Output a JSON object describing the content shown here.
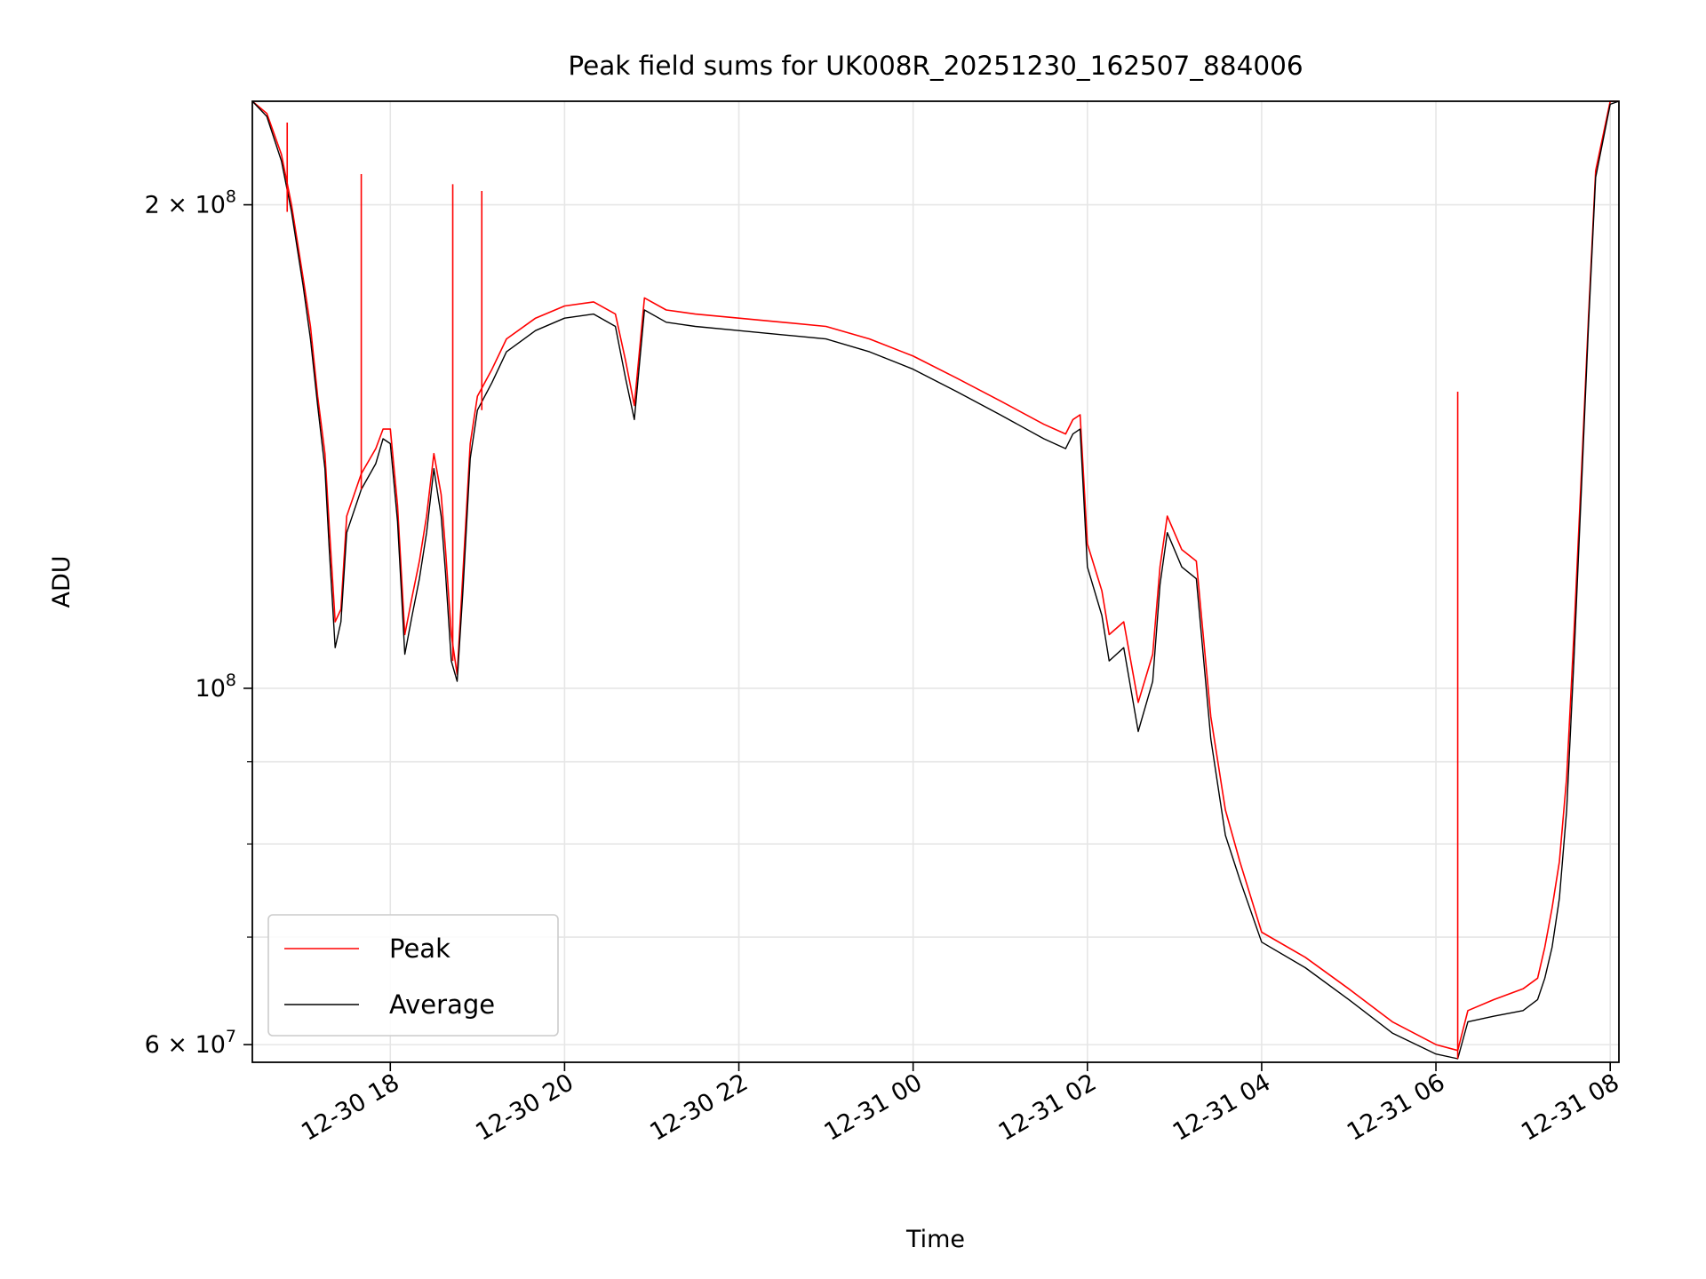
{
  "chart_data": {
    "type": "line",
    "title": "Peak field sums for UK008R_20251230_162507_884006",
    "xlabel": "Time",
    "ylabel": "ADU",
    "y_scale": "log",
    "ylim": [
      58500000,
      232000000
    ],
    "xlim": [
      "2025-12-30 16:25",
      "2025-12-31 08:06"
    ],
    "x_ticks": [
      {
        "t": "2025-12-30 18:00",
        "label": "12-30 18"
      },
      {
        "t": "2025-12-30 20:00",
        "label": "12-30 20"
      },
      {
        "t": "2025-12-30 22:00",
        "label": "12-30 22"
      },
      {
        "t": "2025-12-31 00:00",
        "label": "12-31 00"
      },
      {
        "t": "2025-12-31 02:00",
        "label": "12-31 02"
      },
      {
        "t": "2025-12-31 04:00",
        "label": "12-31 04"
      },
      {
        "t": "2025-12-31 06:00",
        "label": "12-31 06"
      },
      {
        "t": "2025-12-31 08:00",
        "label": "12-31 08"
      }
    ],
    "y_ticks_major": [
      {
        "v": 60000000,
        "base": "6 × 10",
        "exp": "7"
      },
      {
        "v": 100000000,
        "base": "10",
        "exp": "8"
      },
      {
        "v": 200000000,
        "base": "2 × 10",
        "exp": "8"
      }
    ],
    "y_ticks_minor": [
      70000000,
      80000000,
      90000000
    ],
    "grid": true,
    "legend_position": "lower-left",
    "series": [
      {
        "name": "Peak",
        "color": "#ff0000",
        "x": [
          "2025-12-30 16:25",
          "2025-12-30 16:35",
          "2025-12-30 16:45",
          "2025-12-30 16:52",
          "2025-12-30 17:00",
          "2025-12-30 17:05",
          "2025-12-30 17:10",
          "2025-12-30 17:15",
          "2025-12-30 17:18",
          "2025-12-30 17:22",
          "2025-12-30 17:26",
          "2025-12-30 17:30",
          "2025-12-30 17:40",
          "2025-12-30 17:50",
          "2025-12-30 17:55",
          "2025-12-30 18:00",
          "2025-12-30 18:05",
          "2025-12-30 18:10",
          "2025-12-30 18:15",
          "2025-12-30 18:20",
          "2025-12-30 18:25",
          "2025-12-30 18:30",
          "2025-12-30 18:35",
          "2025-12-30 18:38",
          "2025-12-30 18:42",
          "2025-12-30 18:46",
          "2025-12-30 18:50",
          "2025-12-30 18:55",
          "2025-12-30 19:00",
          "2025-12-30 19:10",
          "2025-12-30 19:20",
          "2025-12-30 19:40",
          "2025-12-30 20:00",
          "2025-12-30 20:20",
          "2025-12-30 20:35",
          "2025-12-30 20:42",
          "2025-12-30 20:48",
          "2025-12-30 20:55",
          "2025-12-30 21:10",
          "2025-12-30 21:30",
          "2025-12-30 22:00",
          "2025-12-30 22:30",
          "2025-12-30 23:00",
          "2025-12-30 23:30",
          "2025-12-31 00:00",
          "2025-12-31 00:30",
          "2025-12-31 01:00",
          "2025-12-31 01:30",
          "2025-12-31 01:45",
          "2025-12-31 01:50",
          "2025-12-31 01:55",
          "2025-12-31 02:00",
          "2025-12-31 02:10",
          "2025-12-31 02:15",
          "2025-12-31 02:25",
          "2025-12-31 02:35",
          "2025-12-31 02:45",
          "2025-12-31 02:50",
          "2025-12-31 02:55",
          "2025-12-31 03:05",
          "2025-12-31 03:15",
          "2025-12-31 03:25",
          "2025-12-31 03:35",
          "2025-12-31 03:45",
          "2025-12-31 04:00",
          "2025-12-31 04:30",
          "2025-12-31 05:00",
          "2025-12-31 05:30",
          "2025-12-31 06:00",
          "2025-12-31 06:15",
          "2025-12-31 06:22",
          "2025-12-31 06:40",
          "2025-12-31 07:00",
          "2025-12-31 07:10",
          "2025-12-31 07:15",
          "2025-12-31 07:20",
          "2025-12-31 07:25",
          "2025-12-31 07:30",
          "2025-12-31 07:35",
          "2025-12-31 07:40",
          "2025-12-31 07:45",
          "2025-12-31 07:50",
          "2025-12-31 08:00",
          "2025-12-31 08:06"
        ],
        "y": [
          232000000,
          228000000,
          215000000,
          200000000,
          180000000,
          168000000,
          152000000,
          140000000,
          126000000,
          110000000,
          112000000,
          128000000,
          136000000,
          141000000,
          145000000,
          145000000,
          130000000,
          108000000,
          114000000,
          120000000,
          128000000,
          140000000,
          132000000,
          122000000,
          108000000,
          102000000,
          118000000,
          142000000,
          152000000,
          158000000,
          165000000,
          170000000,
          173000000,
          174000000,
          171000000,
          160000000,
          150000000,
          175000000,
          172000000,
          171000000,
          170000000,
          169000000,
          168000000,
          165000000,
          161000000,
          156000000,
          151000000,
          146000000,
          144000000,
          147000000,
          148000000,
          123000000,
          115000000,
          108000000,
          110000000,
          98000000,
          105000000,
          119000000,
          128000000,
          122000000,
          120000000,
          96000000,
          84000000,
          78000000,
          70500000,
          68000000,
          65000000,
          62000000,
          60000000,
          59500000,
          63000000,
          64000000,
          65000000,
          66000000,
          69000000,
          73000000,
          78000000,
          88000000,
          108000000,
          135000000,
          170000000,
          210000000,
          232000000,
          232000000
        ]
      },
      {
        "name": "Average",
        "color": "#000000",
        "x": [
          "2025-12-30 16:25",
          "2025-12-30 16:35",
          "2025-12-30 16:45",
          "2025-12-30 16:52",
          "2025-12-30 17:00",
          "2025-12-30 17:05",
          "2025-12-30 17:10",
          "2025-12-30 17:15",
          "2025-12-30 17:18",
          "2025-12-30 17:22",
          "2025-12-30 17:26",
          "2025-12-30 17:30",
          "2025-12-30 17:40",
          "2025-12-30 17:50",
          "2025-12-30 17:55",
          "2025-12-30 18:00",
          "2025-12-30 18:05",
          "2025-12-30 18:10",
          "2025-12-30 18:15",
          "2025-12-30 18:20",
          "2025-12-30 18:25",
          "2025-12-30 18:30",
          "2025-12-30 18:35",
          "2025-12-30 18:38",
          "2025-12-30 18:42",
          "2025-12-30 18:46",
          "2025-12-30 18:50",
          "2025-12-30 18:55",
          "2025-12-30 19:00",
          "2025-12-30 19:10",
          "2025-12-30 19:20",
          "2025-12-30 19:40",
          "2025-12-30 20:00",
          "2025-12-30 20:20",
          "2025-12-30 20:35",
          "2025-12-30 20:42",
          "2025-12-30 20:48",
          "2025-12-30 20:55",
          "2025-12-30 21:10",
          "2025-12-30 21:30",
          "2025-12-30 22:00",
          "2025-12-30 22:30",
          "2025-12-30 23:00",
          "2025-12-30 23:30",
          "2025-12-31 00:00",
          "2025-12-31 00:30",
          "2025-12-31 01:00",
          "2025-12-31 01:30",
          "2025-12-31 01:45",
          "2025-12-31 01:50",
          "2025-12-31 01:55",
          "2025-12-31 02:00",
          "2025-12-31 02:10",
          "2025-12-31 02:15",
          "2025-12-31 02:25",
          "2025-12-31 02:35",
          "2025-12-31 02:45",
          "2025-12-31 02:50",
          "2025-12-31 02:55",
          "2025-12-31 03:05",
          "2025-12-31 03:15",
          "2025-12-31 03:25",
          "2025-12-31 03:35",
          "2025-12-31 03:45",
          "2025-12-31 04:00",
          "2025-12-31 04:30",
          "2025-12-31 05:00",
          "2025-12-31 05:30",
          "2025-12-31 06:00",
          "2025-12-31 06:15",
          "2025-12-31 06:22",
          "2025-12-31 06:40",
          "2025-12-31 07:00",
          "2025-12-31 07:10",
          "2025-12-31 07:15",
          "2025-12-31 07:20",
          "2025-12-31 07:25",
          "2025-12-31 07:30",
          "2025-12-31 07:35",
          "2025-12-31 07:40",
          "2025-12-31 07:45",
          "2025-12-31 07:50",
          "2025-12-31 08:00",
          "2025-12-31 08:06"
        ],
        "y": [
          232000000,
          227000000,
          213000000,
          198000000,
          178000000,
          165000000,
          150000000,
          137000000,
          122000000,
          106000000,
          110000000,
          125000000,
          133000000,
          138000000,
          143000000,
          142000000,
          127000000,
          105000000,
          111000000,
          117000000,
          125000000,
          137000000,
          128000000,
          118000000,
          104000000,
          101000000,
          115000000,
          139000000,
          149000000,
          155000000,
          162000000,
          167000000,
          170000000,
          171000000,
          168000000,
          156000000,
          147000000,
          172000000,
          169000000,
          168000000,
          167000000,
          166000000,
          165000000,
          162000000,
          158000000,
          153000000,
          148000000,
          143000000,
          141000000,
          144000000,
          145000000,
          119000000,
          111000000,
          104000000,
          106000000,
          94000000,
          101000000,
          116000000,
          125000000,
          119000000,
          117000000,
          93000000,
          81000000,
          76000000,
          69500000,
          67000000,
          64000000,
          61000000,
          59200000,
          58800000,
          62000000,
          62500000,
          63000000,
          64000000,
          66000000,
          69000000,
          74000000,
          84000000,
          104000000,
          132000000,
          168000000,
          208000000,
          231000000,
          232000000
        ]
      }
    ],
    "peak_spikes": [
      {
        "t": "2025-12-30 16:49",
        "y": 225000000
      },
      {
        "t": "2025-12-30 17:40",
        "y": 209000000
      },
      {
        "t": "2025-12-30 18:43",
        "y": 206000000
      },
      {
        "t": "2025-12-30 19:03",
        "y": 204000000
      },
      {
        "t": "2025-12-31 06:15",
        "y": 153000000
      }
    ]
  }
}
